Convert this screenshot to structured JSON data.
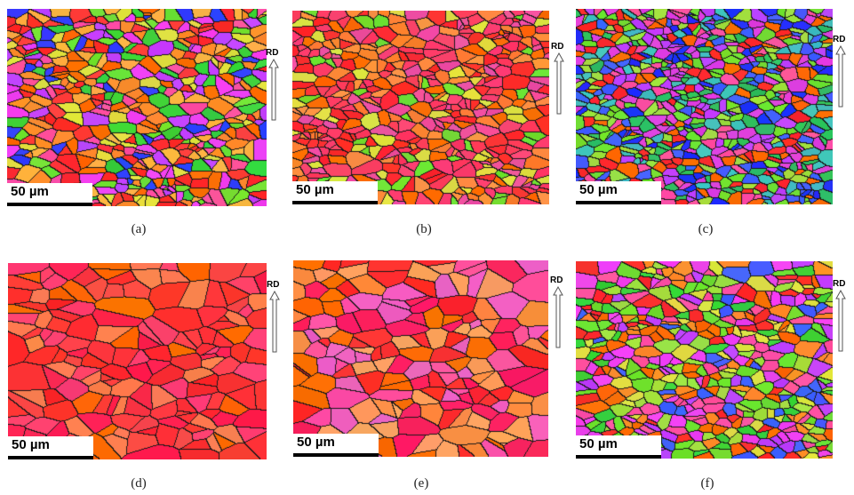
{
  "panels": [
    {
      "scale_label": "50 µm",
      "axis_label": "RD",
      "caption": "(a)",
      "palette": [
        "#ff2a2a",
        "#ff3a3a",
        "#ff6a00",
        "#ff8c2a",
        "#ff4fa0",
        "#f040f0",
        "#c040ff",
        "#70e030",
        "#3ad23a",
        "#ffb040",
        "#3040ff",
        "#e0e040"
      ]
    },
    {
      "scale_label": "50 µm",
      "axis_label": "RD",
      "caption": "(b)",
      "palette": [
        "#ff2a2a",
        "#ff3030",
        "#ff6a00",
        "#ff8030",
        "#ff4070",
        "#f050a0",
        "#ff9040",
        "#ff3a60",
        "#e0e040",
        "#70e030"
      ]
    },
    {
      "scale_label": "50 µm",
      "axis_label": "RD",
      "caption": "(c)",
      "palette": [
        "#2030ff",
        "#4060ff",
        "#30c060",
        "#70e030",
        "#ff2a2a",
        "#ff6a00",
        "#c040ff",
        "#e040e0",
        "#40c0c0",
        "#a0e040",
        "#ff4fa0"
      ]
    },
    {
      "scale_label": "50 µm",
      "axis_label": "RD",
      "caption": "(d)",
      "palette": [
        "#ff2a2a",
        "#ff3030",
        "#ff3a3a",
        "#ff4a4a",
        "#ff6a00",
        "#ff4070",
        "#ff8050",
        "#ff2050"
      ]
    },
    {
      "scale_label": "50 µm",
      "axis_label": "RD",
      "caption": "(e)",
      "palette": [
        "#ff2a2a",
        "#ff3030",
        "#ff6a00",
        "#ff8a40",
        "#ff4fa0",
        "#f060c0",
        "#ffa060",
        "#ff2060"
      ]
    },
    {
      "scale_label": "50 µm",
      "axis_label": "RD",
      "caption": "(f)",
      "palette": [
        "#ff2a2a",
        "#ff6a00",
        "#ff8c2a",
        "#70e030",
        "#3ad23a",
        "#c040ff",
        "#4060ff",
        "#e0e040",
        "#ff4fa0",
        "#a0e040",
        "#f040f0"
      ]
    }
  ]
}
